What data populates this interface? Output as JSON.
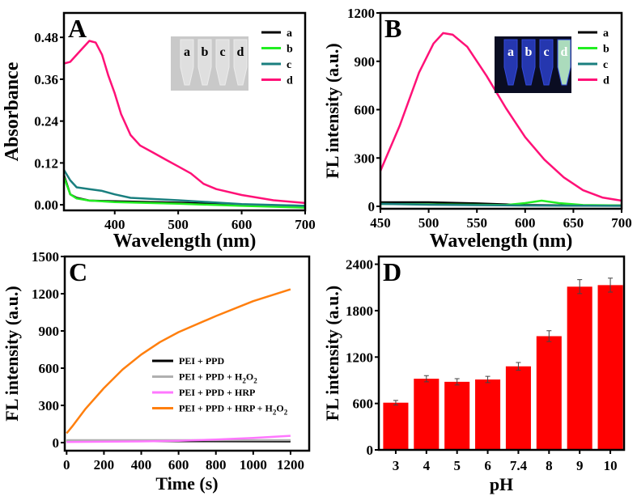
{
  "chart_data": [
    {
      "panel": "A",
      "type": "line",
      "xlabel": "Wavelength (nm)",
      "ylabel": "Absorbance",
      "xlim": [
        320,
        700
      ],
      "ylim": [
        -0.016,
        0.55
      ],
      "xticks": [
        400,
        500,
        600,
        700
      ],
      "yticks": [
        0.0,
        0.12,
        0.24,
        0.36,
        0.48
      ],
      "ytick_labels": [
        "0.00",
        "0.12",
        "0.24",
        "0.36",
        "0.48"
      ],
      "legend_position": "top-right",
      "inset": {
        "labels": [
          "a",
          "b",
          "c",
          "d"
        ],
        "style": "daylight-tubes"
      },
      "series": [
        {
          "name": "a",
          "color": "#000000",
          "points": [
            [
              320,
              0.085
            ],
            [
              330,
              0.03
            ],
            [
              340,
              0.02
            ],
            [
              360,
              0.012
            ],
            [
              400,
              0.01
            ],
            [
              500,
              0.006
            ],
            [
              600,
              0.0
            ],
            [
              700,
              -0.003
            ]
          ]
        },
        {
          "name": "b",
          "color": "#22ee22",
          "points": [
            [
              320,
              0.08
            ],
            [
              330,
              0.03
            ],
            [
              340,
              0.018
            ],
            [
              360,
              0.012
            ],
            [
              400,
              0.008
            ],
            [
              500,
              0.003
            ],
            [
              600,
              -0.003
            ],
            [
              700,
              -0.008
            ]
          ]
        },
        {
          "name": "c",
          "color": "#1a7f7f",
          "points": [
            [
              320,
              0.1
            ],
            [
              330,
              0.07
            ],
            [
              340,
              0.05
            ],
            [
              360,
              0.045
            ],
            [
              380,
              0.04
            ],
            [
              400,
              0.03
            ],
            [
              425,
              0.02
            ],
            [
              500,
              0.013
            ],
            [
              600,
              0.002
            ],
            [
              700,
              -0.003
            ]
          ]
        },
        {
          "name": "d",
          "color": "#ff1177",
          "points": [
            [
              320,
              0.405
            ],
            [
              330,
              0.41
            ],
            [
              345,
              0.44
            ],
            [
              360,
              0.47
            ],
            [
              370,
              0.465
            ],
            [
              380,
              0.43
            ],
            [
              390,
              0.37
            ],
            [
              400,
              0.32
            ],
            [
              410,
              0.26
            ],
            [
              425,
              0.2
            ],
            [
              440,
              0.17
            ],
            [
              460,
              0.15
            ],
            [
              480,
              0.13
            ],
            [
              500,
              0.11
            ],
            [
              520,
              0.09
            ],
            [
              540,
              0.06
            ],
            [
              560,
              0.045
            ],
            [
              600,
              0.028
            ],
            [
              650,
              0.013
            ],
            [
              700,
              0.005
            ]
          ]
        }
      ]
    },
    {
      "panel": "B",
      "type": "line",
      "xlabel": "Wavelength (nm)",
      "ylabel": "FL intensity (a.u.)",
      "xlim": [
        450,
        700
      ],
      "ylim": [
        -15,
        1200
      ],
      "xticks": [
        450,
        500,
        550,
        600,
        650,
        700
      ],
      "yticks": [
        0,
        300,
        600,
        900,
        1200
      ],
      "ytick_labels": [
        "0",
        "300",
        "600",
        "900",
        "1200"
      ],
      "legend_position": "top-right",
      "inset": {
        "labels": [
          "a",
          "b",
          "c",
          "d"
        ],
        "style": "uv-tubes"
      },
      "series": [
        {
          "name": "a",
          "color": "#000000",
          "points": [
            [
              450,
              25
            ],
            [
              500,
              25
            ],
            [
              550,
              18
            ],
            [
              600,
              8
            ],
            [
              650,
              5
            ],
            [
              700,
              5
            ]
          ]
        },
        {
          "name": "b",
          "color": "#22ee22",
          "points": [
            [
              450,
              15
            ],
            [
              580,
              8
            ],
            [
              600,
              20
            ],
            [
              617,
              35
            ],
            [
              635,
              20
            ],
            [
              660,
              8
            ],
            [
              700,
              5
            ]
          ]
        },
        {
          "name": "c",
          "color": "#1a7f7f",
          "points": [
            [
              450,
              15
            ],
            [
              500,
              10
            ],
            [
              600,
              5
            ],
            [
              700,
              3
            ]
          ]
        },
        {
          "name": "d",
          "color": "#ff1177",
          "points": [
            [
              450,
              220
            ],
            [
              470,
              500
            ],
            [
              490,
              830
            ],
            [
              505,
              1010
            ],
            [
              515,
              1075
            ],
            [
              525,
              1065
            ],
            [
              540,
              990
            ],
            [
              560,
              810
            ],
            [
              580,
              610
            ],
            [
              600,
              430
            ],
            [
              620,
              290
            ],
            [
              640,
              180
            ],
            [
              660,
              100
            ],
            [
              680,
              55
            ],
            [
              700,
              35
            ]
          ]
        }
      ]
    },
    {
      "panel": "C",
      "type": "line",
      "xlabel": "Time (s)",
      "ylabel": "FL intensity (a.u.)",
      "xlim": [
        -10,
        1300
      ],
      "ylim": [
        -65,
        1500
      ],
      "xticks": [
        0,
        200,
        400,
        600,
        800,
        1000,
        1200
      ],
      "yticks": [
        0,
        300,
        600,
        900,
        1200,
        1500
      ],
      "ytick_labels": [
        "0",
        "300",
        "600",
        "900",
        "1200",
        "1500"
      ],
      "legend_position": "center-right",
      "series": [
        {
          "name": "PEI + PPD",
          "sub": "",
          "color": "#000000",
          "points": [
            [
              0,
              15
            ],
            [
              600,
              12
            ],
            [
              1200,
              10
            ]
          ]
        },
        {
          "name": "PEI + PPD + H",
          "sub": "2",
          "name2": "O",
          "sub2": "2",
          "color": "#b0b0b0",
          "points": [
            [
              0,
              20
            ],
            [
              600,
              20
            ],
            [
              1200,
              20
            ]
          ]
        },
        {
          "name": "PEI + PPD + HRP",
          "sub": "",
          "color": "#ff77ff",
          "points": [
            [
              0,
              5
            ],
            [
              400,
              10
            ],
            [
              600,
              15
            ],
            [
              800,
              25
            ],
            [
              1000,
              38
            ],
            [
              1200,
              55
            ]
          ]
        },
        {
          "name": "PEI + PPD + HRP + H",
          "sub": "2",
          "name2": "O",
          "sub2": "2",
          "color": "#ff7f0e",
          "points": [
            [
              0,
              75
            ],
            [
              30,
              130
            ],
            [
              100,
              270
            ],
            [
              200,
              440
            ],
            [
              300,
              590
            ],
            [
              400,
              710
            ],
            [
              500,
              810
            ],
            [
              600,
              890
            ],
            [
              800,
              1020
            ],
            [
              1000,
              1140
            ],
            [
              1200,
              1235
            ]
          ]
        }
      ]
    },
    {
      "panel": "D",
      "type": "bar",
      "xlabel": "pH",
      "ylabel": "FL intensity (a.u.)",
      "ylim": [
        0,
        2500
      ],
      "yticks": [
        0,
        600,
        1200,
        1800,
        2400
      ],
      "ytick_labels": [
        "0",
        "600",
        "1200",
        "1800",
        "2400"
      ],
      "bar_color": "#ff0000",
      "categories": [
        "3",
        "4",
        "5",
        "6",
        "7.4",
        "8",
        "9",
        "10"
      ],
      "values": [
        610,
        920,
        880,
        910,
        1080,
        1470,
        2110,
        2130
      ],
      "errors": [
        30,
        40,
        40,
        40,
        50,
        70,
        90,
        90
      ]
    }
  ]
}
